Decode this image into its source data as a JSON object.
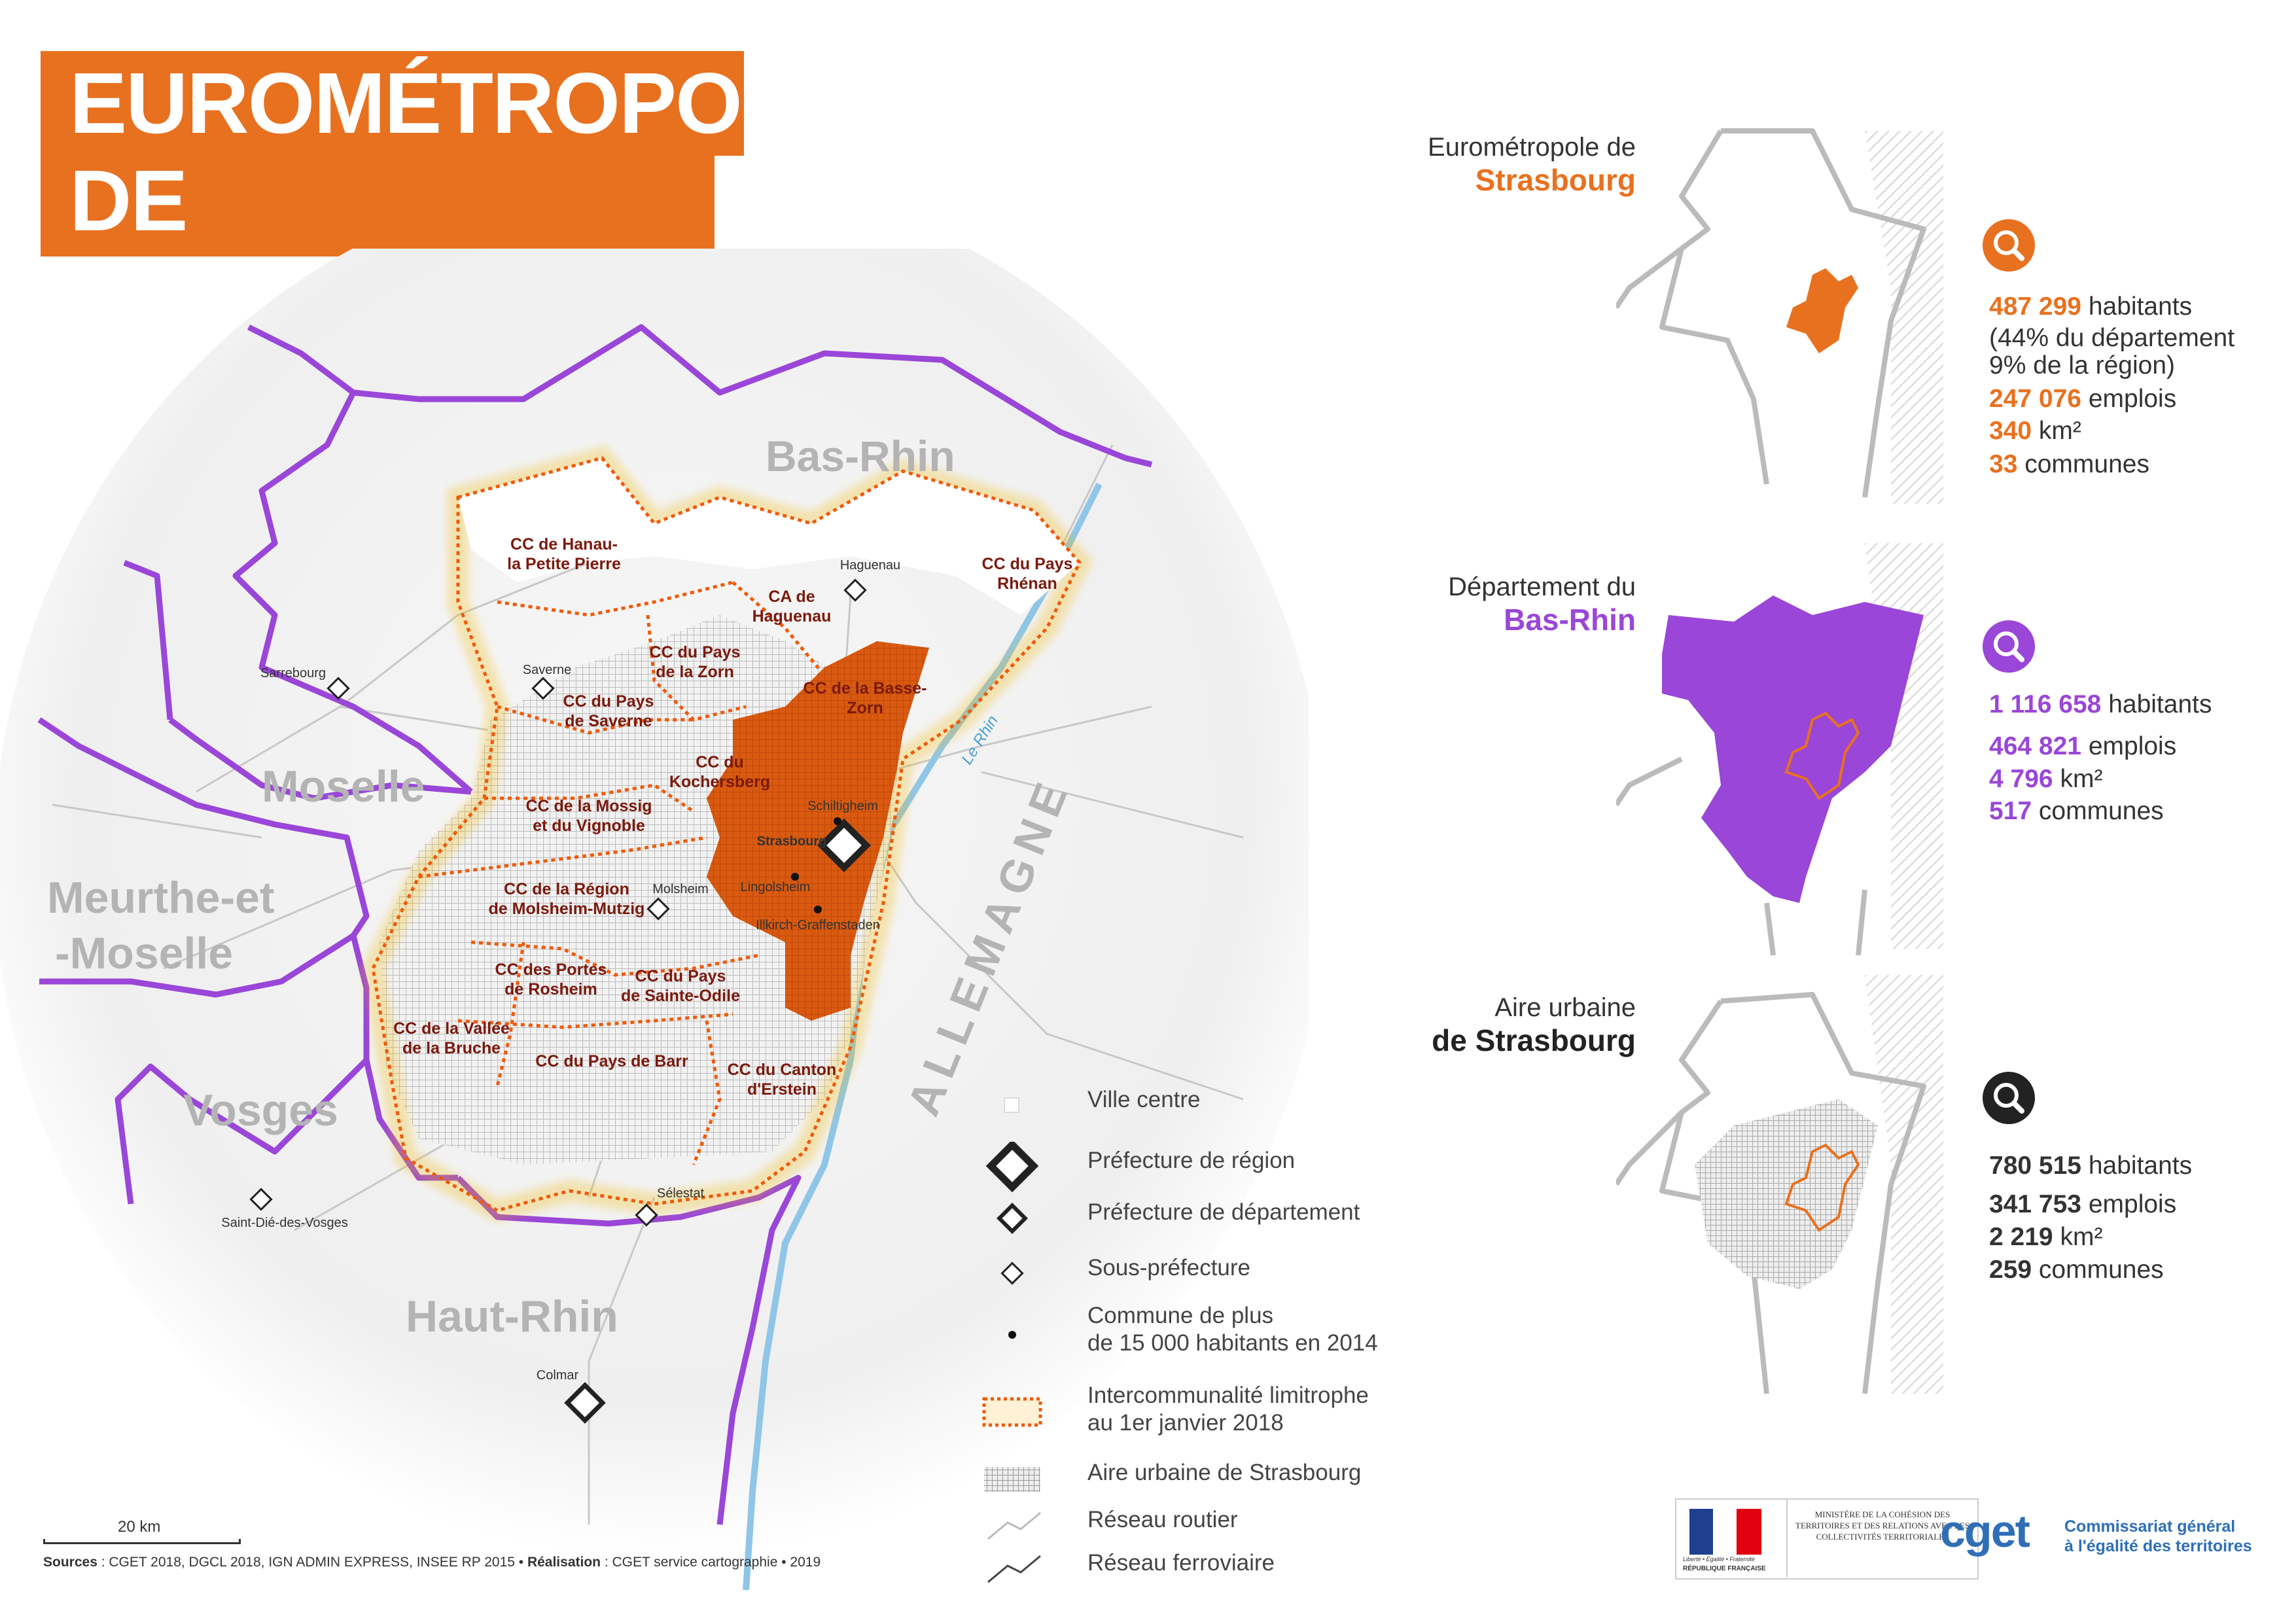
{
  "title": {
    "line1": "EUROMÉTROPOLE",
    "line2": "DE STRASBOURG"
  },
  "colors": {
    "orange": "#e8711f",
    "purple": "#9a46d8",
    "dark_red": "#7a1a0e",
    "black": "#222222"
  },
  "map": {
    "regions": {
      "bas_rhin": "Bas-Rhin",
      "moselle": "Moselle",
      "meurthe1": "Meurthe-et",
      "meurthe2": "-Moselle",
      "vosges": "Vosges",
      "haut_rhin": "Haut-Rhin",
      "allemagne": "ALLEMAGNE",
      "le_rhin": "Le Rhin"
    },
    "epci": [
      {
        "l1": "CC de Hanau-",
        "l2": "la Petite Pierre"
      },
      {
        "l1": "CA de",
        "l2": "Haguenau"
      },
      {
        "l1": "CC du Pays",
        "l2": "Rhénan"
      },
      {
        "l1": "CC du Pays",
        "l2": "de la Zorn"
      },
      {
        "l1": "CC de la Basse-",
        "l2": "Zorn"
      },
      {
        "l1": "CC du Pays",
        "l2": "de Saverne"
      },
      {
        "l1": "CC du",
        "l2": "Kochersberg"
      },
      {
        "l1": "CC de la Mossig",
        "l2": "et du Vignoble"
      },
      {
        "l1": "CC de la Région",
        "l2": "de Molsheim-Mutzig"
      },
      {
        "l1": "CC des Portes",
        "l2": "de Rosheim"
      },
      {
        "l1": "CC du Pays",
        "l2": "de Sainte-Odile"
      },
      {
        "l1": "CC de la Vallée",
        "l2": "de la Bruche"
      },
      {
        "l1": "CC du Pays de Barr",
        "l2": ""
      },
      {
        "l1": "CC du Canton",
        "l2": "d'Erstein"
      }
    ],
    "cities": {
      "haguenau": "Haguenau",
      "saverne": "Saverne",
      "sarrebourg": "Sarrebourg",
      "schiltigheim": "Schiltigheim",
      "strasbourg": "Strasbourg",
      "lingolsheim": "Lingolsheim",
      "illkirch": "Illkirch-Graffenstaden",
      "molsheim": "Molsheim",
      "selestat": "Sélestat",
      "saint_die": "Saint-Dié-des-Vosges",
      "colmar": "Colmar"
    },
    "scale": "20 km"
  },
  "legend": [
    {
      "icon": "ville-centre-icon",
      "text": "Ville centre"
    },
    {
      "icon": "prefecture-region-icon",
      "text": "Préfecture de région"
    },
    {
      "icon": "prefecture-departement-icon",
      "text": "Préfecture de département"
    },
    {
      "icon": "sous-prefecture-icon",
      "text": "Sous-préfecture"
    },
    {
      "icon": "commune-dot-icon",
      "text": "Commune de plus",
      "text2": "de 15 000 habitants en 2014"
    },
    {
      "icon": "intercommunalite-icon",
      "text": "Intercommunalité limitrophe",
      "text2": "au 1er janvier 2018"
    },
    {
      "icon": "aire-urbaine-icon",
      "text": "Aire urbaine de Strasbourg"
    },
    {
      "icon": "reseau-routier-icon",
      "text": "Réseau routier"
    },
    {
      "icon": "reseau-ferroviaire-icon",
      "text": "Réseau ferroviaire"
    }
  ],
  "panels": [
    {
      "title1": "Eurométropole de",
      "title2": "Strasbourg",
      "stats": [
        {
          "value": "487 299",
          "label": "habitants"
        },
        {
          "value": "",
          "label": "(44% du département"
        },
        {
          "value": "",
          "label": "9% de la région)"
        },
        {
          "value": "247 076",
          "label": "emplois"
        },
        {
          "value": "340",
          "label": "km²"
        },
        {
          "value": "33",
          "label": "communes"
        }
      ]
    },
    {
      "title1": "Département du",
      "title2": "Bas-Rhin",
      "stats": [
        {
          "value": "1 116 658",
          "label": "habitants"
        },
        {
          "value": "464 821",
          "label": "emplois"
        },
        {
          "value": "4 796",
          "label": "km²"
        },
        {
          "value": "517",
          "label": "communes"
        }
      ]
    },
    {
      "title1": "Aire urbaine",
      "title2": "de Strasbourg",
      "stats": [
        {
          "value": "780 515",
          "label": "habitants"
        },
        {
          "value": "341 753",
          "label": "emplois"
        },
        {
          "value": "2 219",
          "label": "km²"
        },
        {
          "value": "259",
          "label": "communes"
        }
      ]
    }
  ],
  "footer": {
    "sources_label": "Sources",
    "sources_text": " : CGET 2018, DGCL 2018, IGN ADMIN EXPRESS, INSEE RP 2015 • ",
    "realisation_label": "Réalisation",
    "realisation_text": " : CGET service cartographie • 2019",
    "ministere": "MINISTÈRE DE LA COHÉSION DES TERRITOIRES ET DES RELATIONS AVEC LES COLLECTIVITÉS TERRITORIALES",
    "rf_motto": "Liberté • Égalité • Fraternité",
    "rf_name": "RÉPUBLIQUE FRANÇAISE",
    "cget": "cget",
    "cget_line1": "Commissariat général",
    "cget_line2": "à l'égalité des territoires"
  }
}
